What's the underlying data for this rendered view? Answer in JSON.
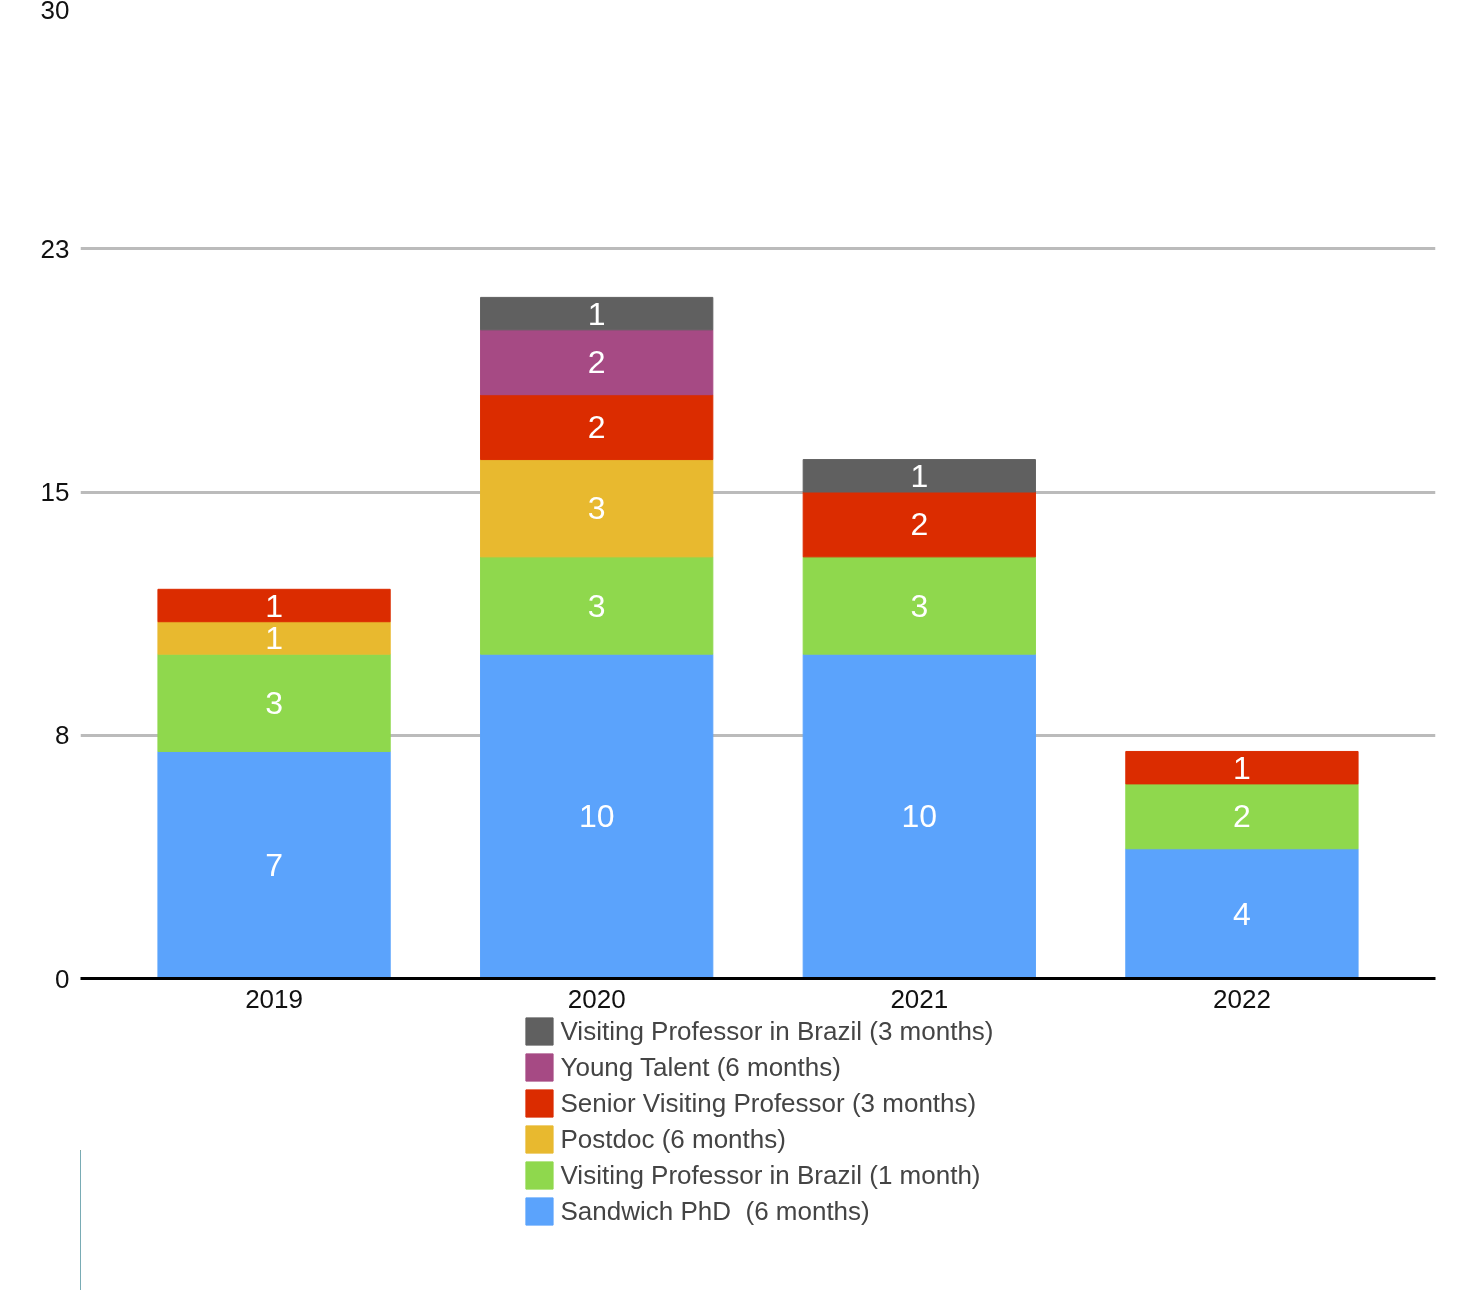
{
  "chart_data": {
    "type": "bar",
    "stacked": true,
    "categories": [
      "2019",
      "2020",
      "2021",
      "2022"
    ],
    "series": [
      {
        "name": "Sandwich PhD  (6 months)",
        "color": "#5ba3fc",
        "values": [
          7,
          10,
          10,
          4
        ]
      },
      {
        "name": "Visiting Professor in Brazil (1 month)",
        "color": "#8fd84d",
        "values": [
          3,
          3,
          3,
          2
        ]
      },
      {
        "name": "Postdoc (6 months)",
        "color": "#e8b92f",
        "values": [
          1,
          3,
          null,
          null
        ]
      },
      {
        "name": "Senior Visiting Professor (3 months)",
        "color": "#db2c00",
        "values": [
          1,
          2,
          2,
          1
        ]
      },
      {
        "name": "Young Talent (6 months)",
        "color": "#a64a84",
        "values": [
          null,
          2,
          null,
          null
        ]
      },
      {
        "name": "Visiting Professor in Brazil (3 months)",
        "color": "#606060",
        "values": [
          null,
          1,
          1,
          null
        ]
      }
    ],
    "ylim": [
      0,
      30
    ],
    "yticks": [
      0,
      {
        "value": 7.5,
        "label": "8"
      },
      15,
      {
        "value": 22.5,
        "label": "23"
      },
      30
    ],
    "grid": "y",
    "legend": "bottom",
    "data_labels": true
  }
}
